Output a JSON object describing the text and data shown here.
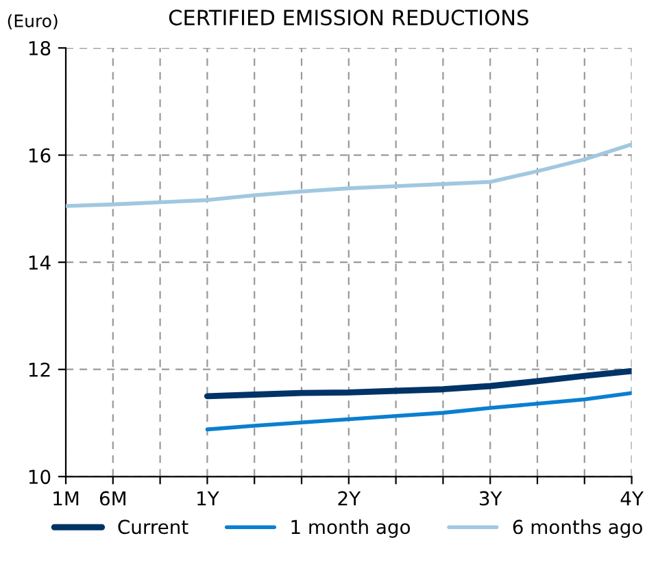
{
  "chart_data": {
    "type": "line",
    "title": "CERTIFIED EMISSION REDUCTIONS",
    "ylabel": "(Euro)",
    "categories": [
      "1M",
      "6M",
      null,
      "1Y",
      null,
      null,
      "2Y",
      null,
      null,
      "3Y",
      null,
      null,
      "4Y"
    ],
    "ylim": [
      10,
      18
    ],
    "yticks": [
      10,
      12,
      14,
      16,
      18
    ],
    "grid": true,
    "legend": "bottom",
    "series": [
      {
        "name": "Current",
        "color": "#003366",
        "values": [
          null,
          null,
          null,
          11.5,
          11.53,
          11.56,
          11.57,
          11.6,
          11.63,
          11.69,
          11.78,
          11.88,
          11.97
        ]
      },
      {
        "name": "1 month ago",
        "color": "#0a7fd0",
        "values": [
          null,
          null,
          null,
          10.88,
          10.95,
          11.01,
          11.07,
          11.13,
          11.19,
          11.28,
          11.36,
          11.44,
          11.56
        ]
      },
      {
        "name": "6 months ago",
        "color": "#a0c8e0",
        "values": [
          15.05,
          15.08,
          15.12,
          15.16,
          15.25,
          15.32,
          15.38,
          15.42,
          15.46,
          15.5,
          15.7,
          15.92,
          16.2
        ]
      }
    ]
  }
}
